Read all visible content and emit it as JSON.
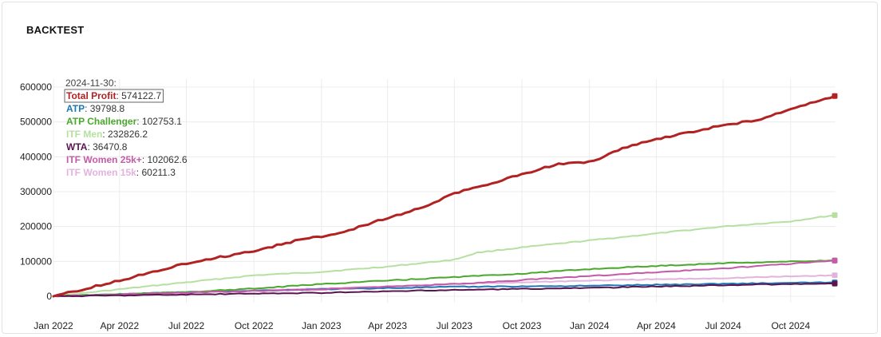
{
  "panel": {
    "title": "BACKTEST"
  },
  "chart_data": {
    "type": "line",
    "title": "BACKTEST",
    "xlabel": "",
    "ylabel": "",
    "x_range": [
      "2022-01-01",
      "2024-11-30"
    ],
    "ylim": [
      0,
      600000
    ],
    "grid": true,
    "x_ticks": [
      {
        "date": "2022-01-01",
        "label": "Jan 2022"
      },
      {
        "date": "2022-04-01",
        "label": "Apr 2022"
      },
      {
        "date": "2022-07-01",
        "label": "Jul 2022"
      },
      {
        "date": "2022-10-01",
        "label": "Oct 2022"
      },
      {
        "date": "2023-01-01",
        "label": "Jan 2023"
      },
      {
        "date": "2023-04-01",
        "label": "Apr 2023"
      },
      {
        "date": "2023-07-01",
        "label": "Jul 2023"
      },
      {
        "date": "2023-10-01",
        "label": "Oct 2023"
      },
      {
        "date": "2024-01-01",
        "label": "Jan 2024"
      },
      {
        "date": "2024-04-01",
        "label": "Apr 2024"
      },
      {
        "date": "2024-07-01",
        "label": "Jul 2024"
      },
      {
        "date": "2024-10-01",
        "label": "Oct 2024"
      }
    ],
    "y_ticks": [
      {
        "value": 0,
        "label": "0"
      },
      {
        "value": 100000,
        "label": "100000"
      },
      {
        "value": 200000,
        "label": "200000"
      },
      {
        "value": 300000,
        "label": "300000"
      },
      {
        "value": 400000,
        "label": "400000"
      },
      {
        "value": 500000,
        "label": "500000"
      },
      {
        "value": 600000,
        "label": "600000"
      }
    ],
    "tooltip": {
      "date": "2024-11-30:",
      "highlighted_series": "Total Profit"
    },
    "series": [
      {
        "name": "Total Profit",
        "color": "#b22222",
        "value_label": "574122.7",
        "points": [
          [
            "2022-01-01",
            0
          ],
          [
            "2022-04-01",
            45000
          ],
          [
            "2022-07-01",
            95000
          ],
          [
            "2022-10-01",
            130000
          ],
          [
            "2022-12-15",
            168000
          ],
          [
            "2023-01-01",
            170000
          ],
          [
            "2023-02-01",
            185000
          ],
          [
            "2023-04-01",
            225000
          ],
          [
            "2023-05-20",
            255000
          ],
          [
            "2023-07-01",
            295000
          ],
          [
            "2023-08-15",
            320000
          ],
          [
            "2023-10-01",
            350000
          ],
          [
            "2023-11-20",
            380000
          ],
          [
            "2023-12-31",
            385000
          ],
          [
            "2024-01-15",
            395000
          ],
          [
            "2024-02-15",
            425000
          ],
          [
            "2024-04-01",
            450000
          ],
          [
            "2024-05-15",
            470000
          ],
          [
            "2024-07-01",
            490000
          ],
          [
            "2024-08-15",
            505000
          ],
          [
            "2024-10-01",
            535000
          ],
          [
            "2024-11-30",
            574122.7
          ]
        ]
      },
      {
        "name": "ATP",
        "color": "#1f77b4",
        "value_label": "39798.8",
        "points": [
          [
            "2022-01-01",
            0
          ],
          [
            "2022-07-01",
            12000
          ],
          [
            "2023-01-01",
            20000
          ],
          [
            "2023-07-01",
            27000
          ],
          [
            "2024-01-01",
            30000
          ],
          [
            "2024-07-01",
            36000
          ],
          [
            "2024-11-30",
            39798.8
          ]
        ]
      },
      {
        "name": "ATP Challenger",
        "color": "#4aa82e",
        "value_label": "102753.1",
        "points": [
          [
            "2022-01-01",
            0
          ],
          [
            "2022-07-01",
            12000
          ],
          [
            "2022-10-01",
            22000
          ],
          [
            "2023-01-01",
            35000
          ],
          [
            "2023-04-01",
            45000
          ],
          [
            "2023-07-01",
            55000
          ],
          [
            "2023-10-01",
            65000
          ],
          [
            "2024-01-01",
            78000
          ],
          [
            "2024-04-01",
            87000
          ],
          [
            "2024-07-01",
            95000
          ],
          [
            "2024-11-30",
            102753.1
          ]
        ]
      },
      {
        "name": "ITF Men",
        "color": "#b5e0a0",
        "value_label": "232826.2",
        "points": [
          [
            "2022-01-01",
            0
          ],
          [
            "2022-04-01",
            20000
          ],
          [
            "2022-07-01",
            40000
          ],
          [
            "2022-10-01",
            60000
          ],
          [
            "2023-01-01",
            70000
          ],
          [
            "2023-04-01",
            85000
          ],
          [
            "2023-07-01",
            105000
          ],
          [
            "2023-08-01",
            125000
          ],
          [
            "2023-10-01",
            140000
          ],
          [
            "2024-01-01",
            160000
          ],
          [
            "2024-04-01",
            180000
          ],
          [
            "2024-07-01",
            200000
          ],
          [
            "2024-10-01",
            215000
          ],
          [
            "2024-11-30",
            232826.2
          ]
        ]
      },
      {
        "name": "WTA",
        "color": "#5a1450",
        "value_label": "36470.8",
        "points": [
          [
            "2022-01-01",
            0
          ],
          [
            "2022-07-01",
            5000
          ],
          [
            "2023-01-01",
            10000
          ],
          [
            "2023-07-01",
            18000
          ],
          [
            "2024-01-01",
            24000
          ],
          [
            "2024-07-01",
            32000
          ],
          [
            "2024-11-30",
            36470.8
          ]
        ]
      },
      {
        "name": "ITF Women 25k+",
        "color": "#c45aa8",
        "value_label": "102062.6",
        "points": [
          [
            "2022-01-01",
            0
          ],
          [
            "2022-07-01",
            10000
          ],
          [
            "2023-01-01",
            20000
          ],
          [
            "2023-07-01",
            35000
          ],
          [
            "2024-01-01",
            58000
          ],
          [
            "2024-07-01",
            80000
          ],
          [
            "2024-11-30",
            102062.6
          ]
        ]
      },
      {
        "name": "ITF Women 15k",
        "color": "#e3b3de",
        "value_label": "60211.3",
        "points": [
          [
            "2022-01-01",
            0
          ],
          [
            "2022-07-01",
            12000
          ],
          [
            "2023-01-01",
            22000
          ],
          [
            "2023-07-01",
            35000
          ],
          [
            "2024-01-01",
            45000
          ],
          [
            "2024-07-01",
            52000
          ],
          [
            "2024-11-30",
            60211.3
          ]
        ]
      }
    ]
  }
}
